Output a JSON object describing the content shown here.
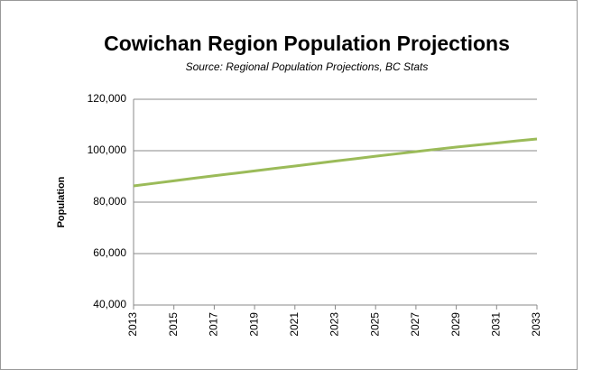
{
  "chart_data": {
    "type": "line",
    "title": "Cowichan Region Population Projections",
    "subtitle": "Source: Regional Population Projections, BC Stats",
    "y_label": "Population",
    "x": [
      2013,
      2014,
      2015,
      2016,
      2017,
      2018,
      2019,
      2020,
      2021,
      2022,
      2023,
      2024,
      2025,
      2026,
      2027,
      2028,
      2029,
      2030,
      2031,
      2032,
      2033
    ],
    "series": [
      {
        "name": "Population",
        "color": "#9bbb59",
        "values": [
          86300,
          87300,
          88300,
          89300,
          90250,
          91200,
          92150,
          93100,
          94050,
          95000,
          95950,
          96900,
          97850,
          98750,
          99650,
          100550,
          101400,
          102200,
          103000,
          103800,
          104550
        ]
      }
    ],
    "xlim": [
      2013,
      2033
    ],
    "xticks": [
      2013,
      2015,
      2017,
      2019,
      2021,
      2023,
      2025,
      2027,
      2029,
      2031,
      2033
    ],
    "ylim": [
      40000,
      120000
    ],
    "yticks": [
      {
        "value": 40000,
        "label": "40,000"
      },
      {
        "value": 60000,
        "label": "60,000"
      },
      {
        "value": 80000,
        "label": "80,000"
      },
      {
        "value": 100000,
        "label": "100,000"
      },
      {
        "value": 120000,
        "label": "120,000"
      }
    ],
    "grid": true
  }
}
